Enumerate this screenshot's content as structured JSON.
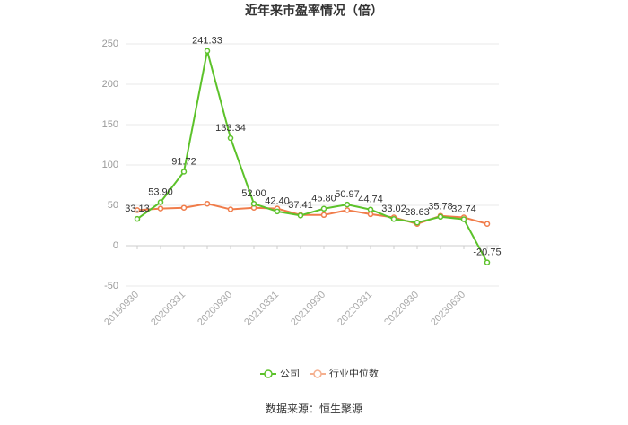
{
  "chart_data": {
    "type": "line",
    "title": "近年来市盈率情况（倍）",
    "categories": [
      "20190930",
      null,
      "20200331",
      null,
      "20200930",
      null,
      "20210331",
      null,
      "20210930",
      null,
      "20220331",
      null,
      "20220930",
      null,
      "20230630",
      null
    ],
    "series": [
      {
        "name": "公司",
        "color": "#5cc22a",
        "values": [
          33.13,
          53.9,
          91.72,
          241.33,
          133.34,
          52.0,
          42.4,
          37.41,
          45.8,
          50.97,
          44.74,
          33.02,
          28.63,
          35.78,
          32.74,
          -20.75
        ],
        "value_labels": [
          "33.13",
          "53.90",
          "91.72",
          "241.33",
          "133.34",
          "52.00",
          "42.40",
          "37.41",
          "45.80",
          "50.97",
          "44.74",
          "33.02",
          "28.63",
          "35.78",
          "32.74",
          "-20.75"
        ]
      },
      {
        "name": "行业中位数",
        "color": "#f07c4a",
        "values": [
          44,
          46,
          47,
          52,
          45,
          47,
          46,
          38,
          38,
          44,
          39,
          35,
          27,
          37,
          35,
          27
        ]
      }
    ],
    "ylim": [
      -50,
      250
    ],
    "yticks": [
      -50,
      0,
      50,
      100,
      150,
      200,
      250
    ],
    "grid": true,
    "legend": "bottom",
    "source": "数据来源：恒生聚源"
  }
}
